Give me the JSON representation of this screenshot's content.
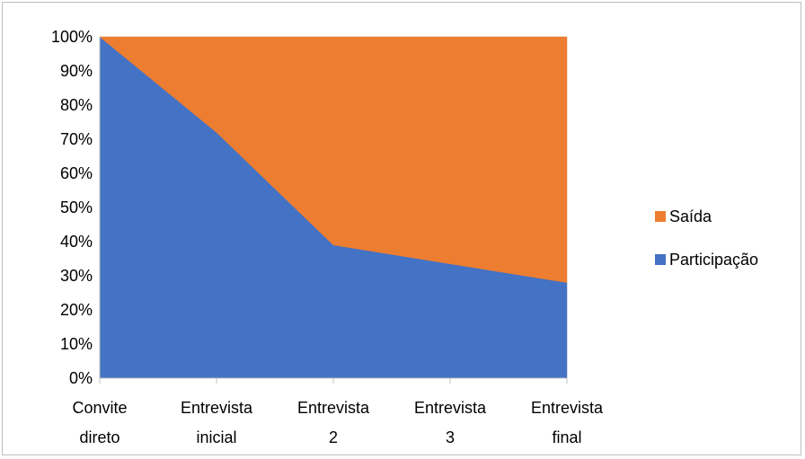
{
  "chart_data": {
    "type": "area",
    "stacked": "100%",
    "categories": [
      [
        "Convite",
        "direto"
      ],
      [
        "Entrevista",
        "inicial"
      ],
      [
        "Entrevista",
        "2"
      ],
      [
        "Entrevista",
        "3"
      ],
      [
        "Entrevista",
        "final"
      ]
    ],
    "series": [
      {
        "name": "Participação",
        "color": "#4472c4",
        "values": [
          100,
          72,
          39,
          33.5,
          28
        ]
      },
      {
        "name": "Saída",
        "color": "#ed7d31",
        "values": [
          0,
          28,
          61,
          66.5,
          72
        ]
      }
    ],
    "ylim": [
      0,
      100
    ],
    "yticks": [
      "0%",
      "10%",
      "20%",
      "30%",
      "40%",
      "50%",
      "60%",
      "70%",
      "80%",
      "90%",
      "100%"
    ],
    "legend": {
      "position": "right",
      "order": [
        "Saída",
        "Participação"
      ]
    },
    "grid": false
  }
}
